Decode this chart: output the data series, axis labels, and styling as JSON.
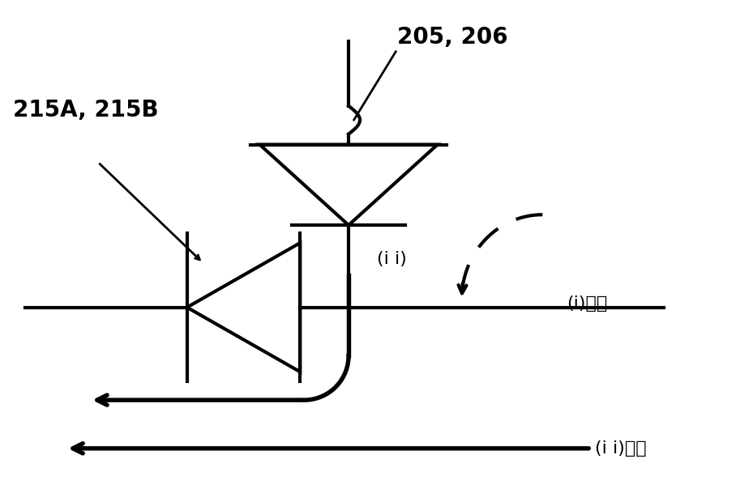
{
  "bg_color": "#ffffff",
  "label_205_206": "205, 206",
  "label_215": "215A, 215B",
  "label_i": "(i)抒吸",
  "label_ii_top": "(i i)",
  "label_ii_bottom": "(i i)挤压",
  "font_size_large": 20,
  "font_size_medium": 16
}
